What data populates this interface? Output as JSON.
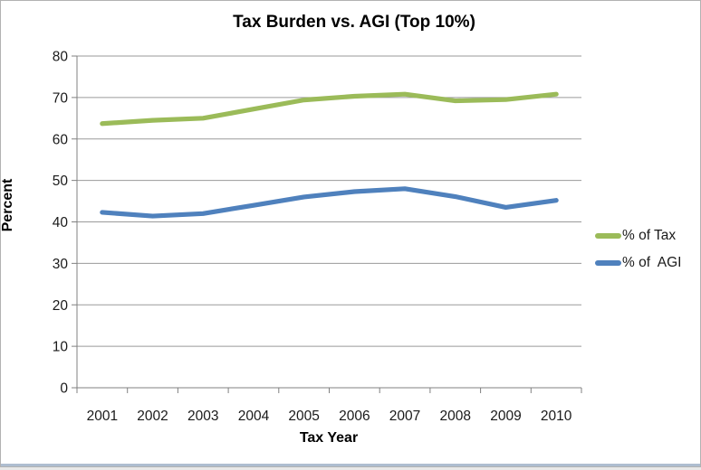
{
  "chart_data": {
    "type": "line",
    "title": "Tax Burden vs. AGI (Top 10%)",
    "xlabel": "Tax Year",
    "ylabel": "Percent",
    "categories": [
      "2001",
      "2002",
      "2003",
      "2004",
      "2005",
      "2006",
      "2007",
      "2008",
      "2009",
      "2010"
    ],
    "series": [
      {
        "name": "% of Tax",
        "color": "#9BBB59",
        "values": [
          63.7,
          64.5,
          65.0,
          67.2,
          69.4,
          70.3,
          70.8,
          69.2,
          69.5,
          70.8
        ]
      },
      {
        "name": "% of  AGI",
        "color": "#4F81BD",
        "values": [
          42.3,
          41.4,
          42.0,
          44.0,
          46.0,
          47.3,
          48.0,
          46.1,
          43.5,
          45.2
        ]
      }
    ],
    "ylim": [
      0,
      80
    ],
    "ytick_step": 10,
    "grid": true,
    "legend_position": "right"
  },
  "style": {
    "grid_color": "#9a9a9a",
    "axis_color": "#808080",
    "tick_text_color": "#1a1a1a",
    "background": "#ffffff",
    "line_width": 5.2
  }
}
